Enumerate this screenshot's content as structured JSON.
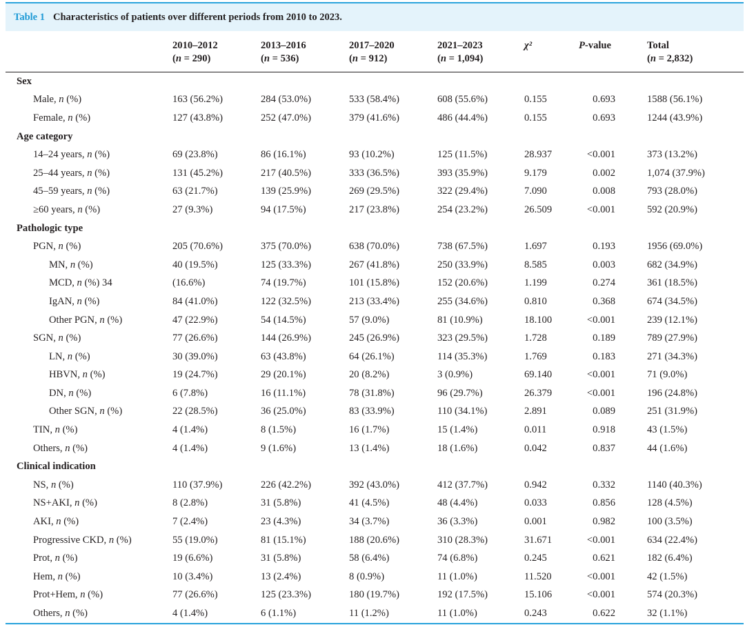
{
  "caption": {
    "label": "Table 1",
    "title": "Characteristics of patients over different periods from 2010 to 2023."
  },
  "header": [
    {
      "l1": "",
      "l2": ""
    },
    {
      "l1": "2010–2012",
      "l2": "(n = 290)"
    },
    {
      "l1": "2013–2016",
      "l2": "(n = 536)"
    },
    {
      "l1": "2017–2020",
      "l2": "(n = 912)"
    },
    {
      "l1": "2021–2023",
      "l2": "(n = 1,094)"
    },
    {
      "l1": "χ²",
      "l2": ""
    },
    {
      "l1": "P-value",
      "l2": ""
    },
    {
      "l1": "Total",
      "l2": "(n = 2,832)"
    }
  ],
  "rows": [
    {
      "type": "section",
      "label": "Sex"
    },
    {
      "type": "row",
      "indent": 1,
      "label": "Male, n (%)",
      "cells": [
        "163 (56.2%)",
        "284 (53.0%)",
        "533 (58.4%)",
        "608 (55.6%)",
        "0.155",
        "0.693",
        "1588 (56.1%)"
      ]
    },
    {
      "type": "row",
      "indent": 1,
      "label": "Female, n (%)",
      "cells": [
        "127 (43.8%)",
        "252 (47.0%)",
        "379 (41.6%)",
        "486 (44.4%)",
        "0.155",
        "0.693",
        "1244 (43.9%)"
      ]
    },
    {
      "type": "section",
      "label": "Age category"
    },
    {
      "type": "row",
      "indent": 1,
      "label": "14–24 years, n (%)",
      "cells": [
        "69 (23.8%)",
        "86 (16.1%)",
        "93 (10.2%)",
        "125 (11.5%)",
        "28.937",
        "<0.001",
        "373 (13.2%)"
      ]
    },
    {
      "type": "row",
      "indent": 1,
      "label": "25–44 years, n (%)",
      "cells": [
        "131 (45.2%)",
        "217 (40.5%)",
        "333 (36.5%)",
        "393 (35.9%)",
        "9.179",
        "0.002",
        "1,074 (37.9%)"
      ]
    },
    {
      "type": "row",
      "indent": 1,
      "label": "45–59 years, n (%)",
      "cells": [
        "63 (21.7%)",
        "139 (25.9%)",
        "269 (29.5%)",
        "322 (29.4%)",
        "7.090",
        "0.008",
        "793 (28.0%)"
      ]
    },
    {
      "type": "row",
      "indent": 1,
      "label": "≥60 years, n (%)",
      "cells": [
        "27 (9.3%)",
        "94 (17.5%)",
        "217 (23.8%)",
        "254 (23.2%)",
        "26.509",
        "<0.001",
        "592 (20.9%)"
      ]
    },
    {
      "type": "section",
      "label": "Pathologic type"
    },
    {
      "type": "row",
      "indent": 1,
      "label": "PGN, n (%)",
      "cells": [
        "205 (70.6%)",
        "375 (70.0%)",
        "638 (70.0%)",
        "738 (67.5%)",
        "1.697",
        "0.193",
        "1956 (69.0%)"
      ]
    },
    {
      "type": "row",
      "indent": 2,
      "label": "MN, n (%)",
      "cells": [
        "40 (19.5%)",
        "125 (33.3%)",
        "267 (41.8%)",
        "250 (33.9%)",
        "8.585",
        "0.003",
        "682 (34.9%)"
      ]
    },
    {
      "type": "row",
      "indent": 2,
      "label": "MCD, n (%) 34",
      "cells": [
        "(16.6%)",
        "74 (19.7%)",
        "101 (15.8%)",
        "152 (20.6%)",
        "1.199",
        "0.274",
        "361 (18.5%)"
      ]
    },
    {
      "type": "row",
      "indent": 2,
      "label": "IgAN, n (%)",
      "cells": [
        "84 (41.0%)",
        "122 (32.5%)",
        "213 (33.4%)",
        "255 (34.6%)",
        "0.810",
        "0.368",
        "674 (34.5%)"
      ]
    },
    {
      "type": "row",
      "indent": 2,
      "label": "Other PGN, n (%)",
      "cells": [
        "47 (22.9%)",
        "54 (14.5%)",
        "57 (9.0%)",
        "81 (10.9%)",
        "18.100",
        "<0.001",
        "239 (12.1%)"
      ]
    },
    {
      "type": "row",
      "indent": 1,
      "label": "SGN, n (%)",
      "cells": [
        "77 (26.6%)",
        "144 (26.9%)",
        "245 (26.9%)",
        "323 (29.5%)",
        "1.728",
        "0.189",
        "789 (27.9%)"
      ]
    },
    {
      "type": "row",
      "indent": 2,
      "label": "LN, n (%)",
      "cells": [
        "30 (39.0%)",
        "63 (43.8%)",
        "64 (26.1%)",
        "114 (35.3%)",
        "1.769",
        "0.183",
        "271 (34.3%)"
      ]
    },
    {
      "type": "row",
      "indent": 2,
      "label": "HBVN, n (%)",
      "cells": [
        "19 (24.7%)",
        "29 (20.1%)",
        "20 (8.2%)",
        "3 (0.9%)",
        "69.140",
        "<0.001",
        "71 (9.0%)"
      ]
    },
    {
      "type": "row",
      "indent": 2,
      "label": "DN, n (%)",
      "cells": [
        "6 (7.8%)",
        "16 (11.1%)",
        "78 (31.8%)",
        "96 (29.7%)",
        "26.379",
        "<0.001",
        "196 (24.8%)"
      ]
    },
    {
      "type": "row",
      "indent": 2,
      "label": "Other SGN, n (%)",
      "cells": [
        "22 (28.5%)",
        "36 (25.0%)",
        "83 (33.9%)",
        "110 (34.1%)",
        "2.891",
        "0.089",
        "251 (31.9%)"
      ]
    },
    {
      "type": "row",
      "indent": 1,
      "label": "TIN, n (%)",
      "cells": [
        "4 (1.4%)",
        "8 (1.5%)",
        "16 (1.7%)",
        "15 (1.4%)",
        "0.011",
        "0.918",
        "43 (1.5%)"
      ]
    },
    {
      "type": "row",
      "indent": 1,
      "label": "Others, n (%)",
      "cells": [
        "4 (1.4%)",
        "9 (1.6%)",
        "13 (1.4%)",
        "18 (1.6%)",
        "0.042",
        "0.837",
        "44 (1.6%)"
      ]
    },
    {
      "type": "section",
      "label": "Clinical indication"
    },
    {
      "type": "row",
      "indent": 1,
      "label": "NS, n (%)",
      "cells": [
        "110 (37.9%)",
        "226 (42.2%)",
        "392 (43.0%)",
        "412 (37.7%)",
        "0.942",
        "0.332",
        "1140 (40.3%)"
      ]
    },
    {
      "type": "row",
      "indent": 1,
      "label": "NS+AKI, n (%)",
      "cells": [
        "8 (2.8%)",
        "31 (5.8%)",
        "41 (4.5%)",
        "48 (4.4%)",
        "0.033",
        "0.856",
        "128 (4.5%)"
      ]
    },
    {
      "type": "row",
      "indent": 1,
      "label": "AKI, n (%)",
      "cells": [
        "7 (2.4%)",
        "23 (4.3%)",
        "34 (3.7%)",
        "36 (3.3%)",
        "0.001",
        "0.982",
        "100 (3.5%)"
      ]
    },
    {
      "type": "row",
      "indent": 1,
      "label": "Progressive CKD, n (%)",
      "cells": [
        "55 (19.0%)",
        "81 (15.1%)",
        "188 (20.6%)",
        "310 (28.3%)",
        "31.671",
        "<0.001",
        "634 (22.4%)"
      ]
    },
    {
      "type": "row",
      "indent": 1,
      "label": "Prot, n (%)",
      "cells": [
        "19 (6.6%)",
        "31 (5.8%)",
        "58 (6.4%)",
        "74 (6.8%)",
        "0.245",
        "0.621",
        "182 (6.4%)"
      ]
    },
    {
      "type": "row",
      "indent": 1,
      "label": "Hem, n (%)",
      "cells": [
        "10 (3.4%)",
        "13 (2.4%)",
        "8 (0.9%)",
        "11 (1.0%)",
        "11.520",
        "<0.001",
        "42 (1.5%)"
      ]
    },
    {
      "type": "row",
      "indent": 1,
      "label": "Prot+Hem, n (%)",
      "cells": [
        "77 (26.6%)",
        "125 (23.3%)",
        "180 (19.7%)",
        "192 (17.5%)",
        "15.106",
        "<0.001",
        "574 (20.3%)"
      ]
    },
    {
      "type": "row",
      "indent": 1,
      "label": "Others, n (%)",
      "cells": [
        "4 (1.4%)",
        "6 (1.1%)",
        "11 (1.2%)",
        "11 (1.0%)",
        "0.243",
        "0.622",
        "32 (1.1%)"
      ]
    }
  ]
}
